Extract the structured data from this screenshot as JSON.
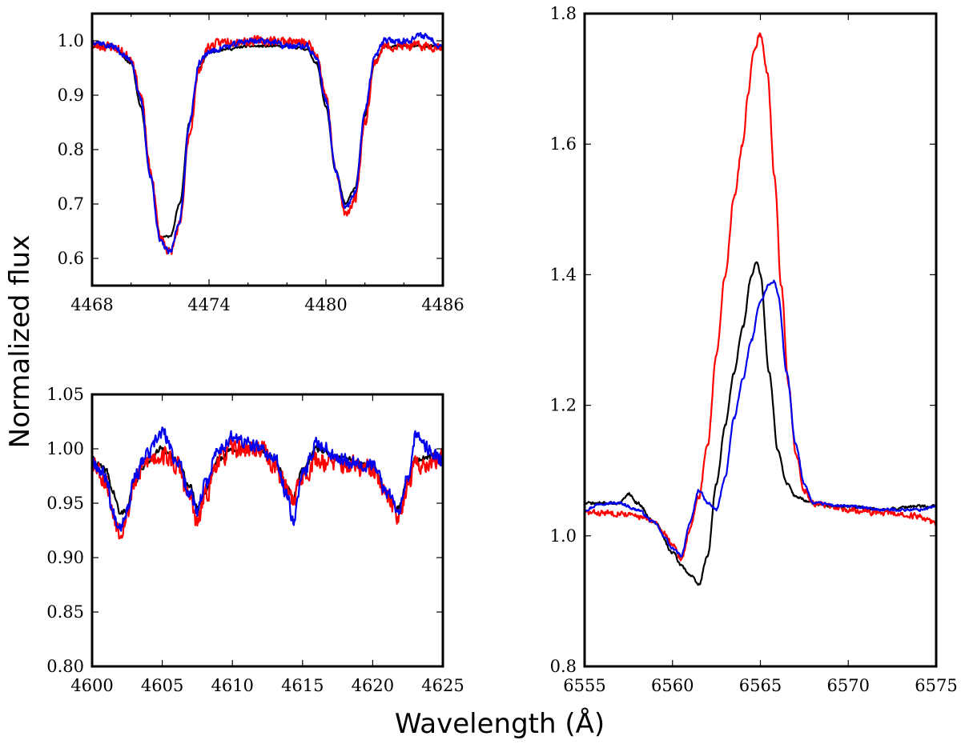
{
  "figure": {
    "ylabel": "Normalized flux",
    "xlabel": "Wavelength (Å)"
  },
  "colors": {
    "black": "#000000",
    "red": "#ff0000",
    "blue": "#0000ee"
  },
  "chart_data": [
    {
      "id": "top-left",
      "type": "line",
      "title": "",
      "xlim": [
        4468,
        4486
      ],
      "ylim": [
        0.55,
        1.05
      ],
      "xticks": [
        4468,
        4474,
        4480,
        4486
      ],
      "xtick_labels": [
        "4468",
        "4474",
        "4480",
        "4486"
      ],
      "xminor": [
        4470,
        4472,
        4476,
        4478,
        4482,
        4484
      ],
      "yticks": [
        0.6,
        0.7,
        0.8,
        0.9,
        1.0
      ],
      "ytick_labels": [
        "0.6",
        "0.7",
        "0.8",
        "0.9",
        "1.0"
      ],
      "yminor": [],
      "series": [
        {
          "name": "black",
          "color": "#000000",
          "noise": 0.003,
          "seed": 11,
          "x": [
            4468,
            4469,
            4470,
            4470.5,
            4471,
            4471.5,
            4472,
            4472.5,
            4473,
            4473.5,
            4474,
            4475,
            4476,
            4477,
            4478,
            4479,
            4479.5,
            4480,
            4480.5,
            4481,
            4481.5,
            4482,
            4482.5,
            4483,
            4484,
            4485,
            4486
          ],
          "y": [
            0.99,
            0.99,
            0.96,
            0.88,
            0.75,
            0.64,
            0.64,
            0.7,
            0.85,
            0.95,
            0.98,
            0.985,
            0.99,
            0.99,
            0.99,
            0.985,
            0.96,
            0.88,
            0.76,
            0.7,
            0.73,
            0.86,
            0.96,
            0.99,
            0.99,
            0.99,
            0.99
          ]
        },
        {
          "name": "red",
          "color": "#ff0000",
          "noise": 0.012,
          "seed": 23,
          "x": [
            4468,
            4469,
            4470,
            4470.5,
            4471,
            4471.5,
            4472,
            4472.5,
            4473,
            4473.5,
            4474,
            4475,
            4476,
            4477,
            4478,
            4479,
            4479.5,
            4480,
            4480.5,
            4481,
            4481.5,
            4482,
            4482.5,
            4483,
            4484,
            4485,
            4486
          ],
          "y": [
            0.99,
            0.99,
            0.97,
            0.9,
            0.76,
            0.64,
            0.61,
            0.66,
            0.83,
            0.95,
            0.99,
            1.0,
            1.0,
            1.0,
            1.0,
            0.995,
            0.98,
            0.9,
            0.76,
            0.68,
            0.71,
            0.85,
            0.96,
            0.99,
            0.99,
            0.99,
            0.99
          ]
        },
        {
          "name": "blue",
          "color": "#0000ee",
          "noise": 0.008,
          "seed": 37,
          "x": [
            4468,
            4469,
            4470,
            4470.5,
            4471,
            4471.5,
            4472,
            4472.5,
            4473,
            4473.5,
            4474,
            4475,
            4476,
            4477,
            4478,
            4479,
            4479.5,
            4480,
            4480.5,
            4481,
            4481.5,
            4482,
            4482.5,
            4483,
            4484,
            4485,
            4486
          ],
          "y": [
            1.0,
            0.99,
            0.965,
            0.89,
            0.75,
            0.63,
            0.61,
            0.67,
            0.85,
            0.96,
            0.98,
            0.99,
            1.0,
            1.0,
            0.99,
            0.99,
            0.97,
            0.89,
            0.76,
            0.69,
            0.72,
            0.87,
            0.97,
            1.0,
            1.0,
            1.01,
            0.99
          ]
        }
      ]
    },
    {
      "id": "bottom-left",
      "type": "line",
      "title": "",
      "xlim": [
        4600,
        4625
      ],
      "ylim": [
        0.8,
        1.05
      ],
      "xticks": [
        4600,
        4605,
        4610,
        4615,
        4620,
        4625
      ],
      "xtick_labels": [
        "4600",
        "4605",
        "4610",
        "4615",
        "4620",
        "4625"
      ],
      "xminor": [],
      "yticks": [
        0.8,
        0.85,
        0.9,
        0.95,
        1.0,
        1.05
      ],
      "ytick_labels": [
        "0.80",
        "0.85",
        "0.90",
        "0.95",
        "1.00",
        "1.05"
      ],
      "yminor": [],
      "series": [
        {
          "name": "black",
          "color": "#000000",
          "noise": 0.004,
          "seed": 41,
          "x": [
            4600,
            4601,
            4601.5,
            4602,
            4602.5,
            4603,
            4604,
            4605,
            4606,
            4607,
            4607.5,
            4608,
            4609,
            4610,
            4612,
            4613,
            4614,
            4614.3,
            4615,
            4616,
            4618,
            4620,
            4621,
            4621.8,
            4622.5,
            4623,
            4625
          ],
          "y": [
            0.99,
            0.98,
            0.96,
            0.94,
            0.945,
            0.97,
            0.99,
            1.0,
            0.99,
            0.965,
            0.945,
            0.96,
            0.99,
            1.0,
            1.0,
            0.99,
            0.965,
            0.955,
            0.98,
            1.0,
            0.99,
            0.985,
            0.96,
            0.945,
            0.97,
            0.99,
            0.995
          ]
        },
        {
          "name": "red",
          "color": "#ff0000",
          "noise": 0.013,
          "seed": 53,
          "x": [
            4600,
            4601,
            4601.5,
            4602,
            4602.5,
            4603,
            4604,
            4605,
            4606,
            4607,
            4607.5,
            4608,
            4609,
            4610,
            4612,
            4613,
            4614,
            4614.3,
            4615,
            4616,
            4618,
            4620,
            4621,
            4621.8,
            4622.5,
            4623,
            4625
          ],
          "y": [
            0.99,
            0.97,
            0.94,
            0.925,
            0.94,
            0.97,
            0.99,
            0.995,
            0.985,
            0.955,
            0.93,
            0.955,
            0.99,
            1.0,
            1.0,
            0.985,
            0.96,
            0.955,
            0.975,
            0.99,
            0.985,
            0.98,
            0.955,
            0.94,
            0.965,
            0.985,
            0.99
          ]
        },
        {
          "name": "blue",
          "color": "#0000ee",
          "noise": 0.009,
          "seed": 67,
          "x": [
            4600,
            4601,
            4601.5,
            4602,
            4602.5,
            4603,
            4604,
            4605,
            4606,
            4607,
            4607.5,
            4608,
            4609,
            4610,
            4612,
            4613,
            4614,
            4614.3,
            4615,
            4616,
            4618,
            4620,
            4621,
            4621.8,
            4622.5,
            4623,
            4625
          ],
          "y": [
            0.99,
            0.975,
            0.94,
            0.93,
            0.945,
            0.975,
            0.995,
            1.015,
            0.99,
            0.96,
            0.94,
            0.965,
            1.0,
            1.01,
            1.0,
            0.99,
            0.955,
            0.935,
            0.975,
            1.005,
            0.99,
            0.985,
            0.96,
            0.945,
            0.975,
            1.01,
            0.99
          ]
        }
      ]
    },
    {
      "id": "right",
      "type": "line",
      "title": "",
      "xlim": [
        6555,
        6575
      ],
      "ylim": [
        0.8,
        1.8
      ],
      "xticks": [
        6555,
        6560,
        6565,
        6570,
        6575
      ],
      "xtick_labels": [
        "6555",
        "6560",
        "6565",
        "6570",
        "6575"
      ],
      "xminor": [],
      "yticks": [
        0.8,
        1.0,
        1.2,
        1.4,
        1.6,
        1.8
      ],
      "ytick_labels": [
        "0.8",
        "1.0",
        "1.2",
        "1.4",
        "1.6",
        "1.8"
      ],
      "yminor": [],
      "series": [
        {
          "name": "black",
          "color": "#000000",
          "noise": 0.003,
          "seed": 71,
          "x": [
            6555,
            6556,
            6557,
            6557.5,
            6558,
            6559,
            6560,
            6560.5,
            6561,
            6561.5,
            6562,
            6562.5,
            6563,
            6563.5,
            6564,
            6564.5,
            6564.8,
            6565,
            6565.5,
            6566,
            6566.5,
            6567,
            6568,
            6569,
            6570,
            6572,
            6574,
            6575
          ],
          "y": [
            1.05,
            1.05,
            1.05,
            1.065,
            1.05,
            1.02,
            0.975,
            0.955,
            0.94,
            0.925,
            0.97,
            1.08,
            1.17,
            1.25,
            1.32,
            1.4,
            1.42,
            1.4,
            1.25,
            1.13,
            1.08,
            1.06,
            1.05,
            1.045,
            1.045,
            1.04,
            1.045,
            1.045
          ]
        },
        {
          "name": "red",
          "color": "#ff0000",
          "noise": 0.006,
          "seed": 83,
          "x": [
            6555,
            6556,
            6557,
            6558,
            6559,
            6559.5,
            6560,
            6560.5,
            6561,
            6561.5,
            6562,
            6562.5,
            6563,
            6563.5,
            6564,
            6564.3,
            6564.6,
            6565,
            6565.4,
            6565.8,
            6566.2,
            6566.6,
            6567,
            6567.5,
            6568,
            6570,
            6572,
            6574,
            6575
          ],
          "y": [
            1.035,
            1.035,
            1.035,
            1.03,
            1.02,
            1.005,
            0.985,
            0.965,
            1.01,
            1.06,
            1.14,
            1.28,
            1.4,
            1.52,
            1.6,
            1.68,
            1.74,
            1.77,
            1.71,
            1.55,
            1.38,
            1.23,
            1.13,
            1.07,
            1.05,
            1.04,
            1.035,
            1.03,
            1.02
          ]
        },
        {
          "name": "blue",
          "color": "#0000ee",
          "noise": 0.003,
          "seed": 97,
          "x": [
            6555,
            6556,
            6557,
            6558,
            6559,
            6559.5,
            6560,
            6560.5,
            6561,
            6561.5,
            6562,
            6562.5,
            6563,
            6563.5,
            6564,
            6564.5,
            6565,
            6565.5,
            6565.8,
            6566,
            6566.5,
            6567,
            6567.5,
            6568,
            6570,
            6572,
            6574,
            6575
          ],
          "y": [
            1.04,
            1.05,
            1.05,
            1.04,
            1.02,
            1.0,
            0.98,
            0.97,
            1.02,
            1.07,
            1.05,
            1.04,
            1.09,
            1.18,
            1.24,
            1.3,
            1.36,
            1.385,
            1.39,
            1.37,
            1.25,
            1.14,
            1.08,
            1.05,
            1.045,
            1.04,
            1.04,
            1.045
          ]
        }
      ]
    }
  ]
}
